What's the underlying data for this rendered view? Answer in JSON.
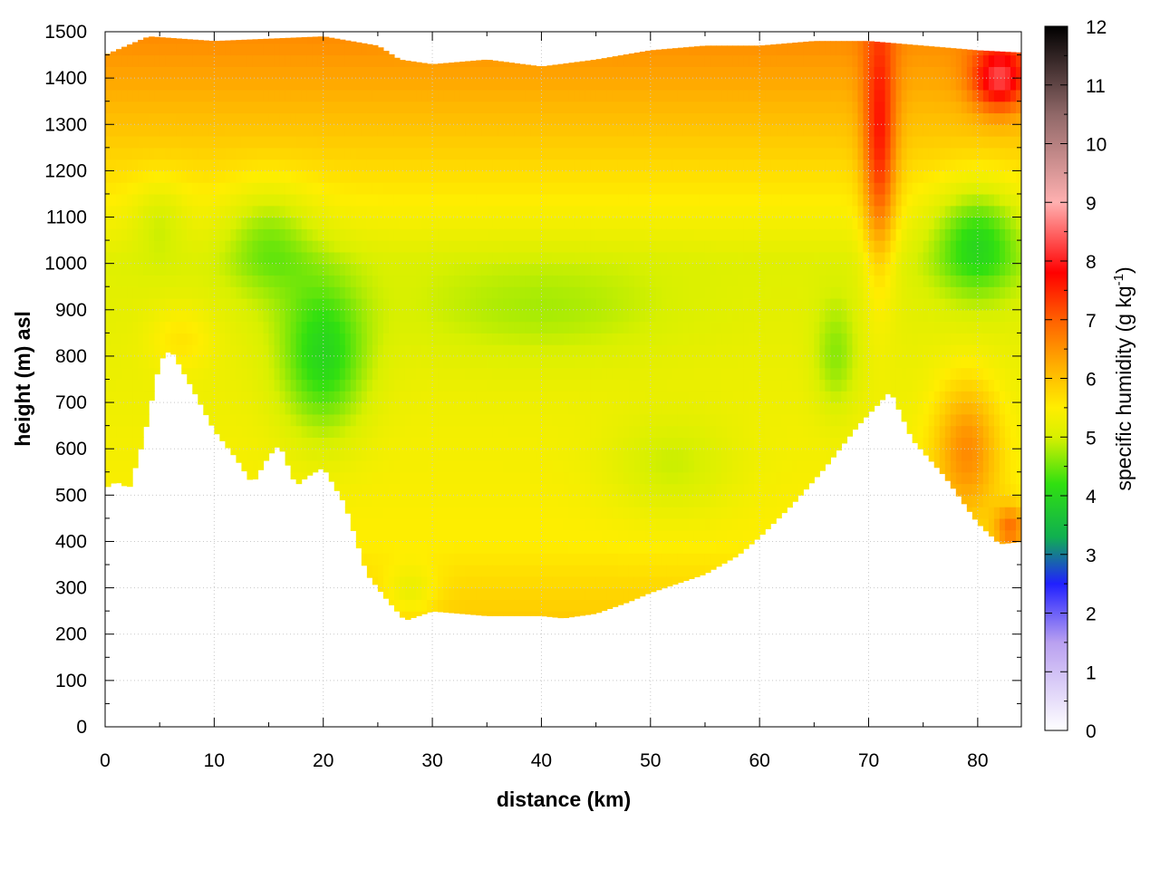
{
  "chart_data": {
    "type": "heatmap",
    "title": "",
    "xlabel": "distance (km)",
    "ylabel": "height (m) asl",
    "xlim": [
      0,
      84
    ],
    "ylim": [
      0,
      1500
    ],
    "x_ticks": [
      "0",
      "10",
      "20",
      "30",
      "40",
      "50",
      "60",
      "70",
      "80"
    ],
    "y_ticks": [
      "0",
      "100",
      "200",
      "300",
      "400",
      "500",
      "600",
      "700",
      "800",
      "900",
      "1000",
      "1100",
      "1200",
      "1300",
      "1400",
      "1500"
    ],
    "grid": true,
    "colorbar": {
      "label_main": "specific humidity (g kg",
      "label_sup": "-1",
      "label_end": ")",
      "range": [
        0,
        12
      ],
      "ticks": [
        "0",
        "1",
        "2",
        "3",
        "4",
        "5",
        "6",
        "7",
        "8",
        "9",
        "10",
        "11",
        "12"
      ],
      "stops": [
        {
          "value": 0,
          "color": "#ffffff"
        },
        {
          "value": 1.5,
          "color": "#b9a0f0"
        },
        {
          "value": 2.5,
          "color": "#2020ff"
        },
        {
          "value": 3.3,
          "color": "#10b050"
        },
        {
          "value": 4.2,
          "color": "#30e010"
        },
        {
          "value": 5.0,
          "color": "#d8f000"
        },
        {
          "value": 5.5,
          "color": "#ffee00"
        },
        {
          "value": 6.2,
          "color": "#ffb000"
        },
        {
          "value": 7.0,
          "color": "#ff6000"
        },
        {
          "value": 7.8,
          "color": "#ff0000"
        },
        {
          "value": 9.0,
          "color": "#ffb0b0"
        },
        {
          "value": 10.5,
          "color": "#906868"
        },
        {
          "value": 12,
          "color": "#000000"
        }
      ]
    },
    "terrain_height": [
      {
        "x": 0,
        "y": 515
      },
      {
        "x": 1,
        "y": 530
      },
      {
        "x": 2.2,
        "y": 515
      },
      {
        "x": 3.5,
        "y": 620
      },
      {
        "x": 5,
        "y": 790
      },
      {
        "x": 6,
        "y": 815
      },
      {
        "x": 8,
        "y": 730
      },
      {
        "x": 10,
        "y": 640
      },
      {
        "x": 12,
        "y": 580
      },
      {
        "x": 13.5,
        "y": 525
      },
      {
        "x": 15,
        "y": 585
      },
      {
        "x": 16,
        "y": 610
      },
      {
        "x": 17.5,
        "y": 520
      },
      {
        "x": 18.5,
        "y": 540
      },
      {
        "x": 20,
        "y": 560
      },
      {
        "x": 22,
        "y": 480
      },
      {
        "x": 24,
        "y": 330
      },
      {
        "x": 26,
        "y": 270
      },
      {
        "x": 27.5,
        "y": 230
      },
      {
        "x": 30,
        "y": 250
      },
      {
        "x": 35,
        "y": 240
      },
      {
        "x": 40,
        "y": 240
      },
      {
        "x": 42,
        "y": 235
      },
      {
        "x": 45,
        "y": 245
      },
      {
        "x": 48,
        "y": 270
      },
      {
        "x": 50,
        "y": 290
      },
      {
        "x": 55,
        "y": 330
      },
      {
        "x": 58,
        "y": 370
      },
      {
        "x": 60,
        "y": 410
      },
      {
        "x": 63,
        "y": 480
      },
      {
        "x": 66,
        "y": 560
      },
      {
        "x": 69,
        "y": 650
      },
      {
        "x": 72,
        "y": 725
      },
      {
        "x": 74,
        "y": 620
      },
      {
        "x": 77,
        "y": 540
      },
      {
        "x": 80,
        "y": 440
      },
      {
        "x": 82,
        "y": 395
      },
      {
        "x": 84,
        "y": 400
      }
    ],
    "top_height": [
      {
        "x": 0,
        "y": 1450
      },
      {
        "x": 2,
        "y": 1470
      },
      {
        "x": 4,
        "y": 1490
      },
      {
        "x": 10,
        "y": 1480
      },
      {
        "x": 20,
        "y": 1490
      },
      {
        "x": 25,
        "y": 1470
      },
      {
        "x": 27,
        "y": 1440
      },
      {
        "x": 30,
        "y": 1430
      },
      {
        "x": 35,
        "y": 1440
      },
      {
        "x": 40,
        "y": 1425
      },
      {
        "x": 45,
        "y": 1440
      },
      {
        "x": 50,
        "y": 1460
      },
      {
        "x": 55,
        "y": 1470
      },
      {
        "x": 60,
        "y": 1470
      },
      {
        "x": 65,
        "y": 1480
      },
      {
        "x": 70,
        "y": 1480
      },
      {
        "x": 75,
        "y": 1470
      },
      {
        "x": 80,
        "y": 1460
      },
      {
        "x": 84,
        "y": 1455
      }
    ],
    "humidity_features": [
      {
        "x": 20,
        "y": 800,
        "sx": 4,
        "sy": 170,
        "amp": -1.2
      },
      {
        "x": 15,
        "y": 1050,
        "sx": 4,
        "sy": 120,
        "amp": -0.7
      },
      {
        "x": 5,
        "y": 1100,
        "sx": 2.5,
        "sy": 90,
        "amp": -0.4
      },
      {
        "x": 28,
        "y": 290,
        "sx": 2.5,
        "sy": 60,
        "amp": -0.5
      },
      {
        "x": 52,
        "y": 560,
        "sx": 6,
        "sy": 110,
        "amp": -0.45
      },
      {
        "x": 40,
        "y": 900,
        "sx": 12,
        "sy": 110,
        "amp": -0.4
      },
      {
        "x": 80,
        "y": 1050,
        "sx": 4,
        "sy": 120,
        "amp": -1.2
      },
      {
        "x": 67,
        "y": 800,
        "sx": 2,
        "sy": 120,
        "amp": -0.6
      },
      {
        "x": 71,
        "y": 1250,
        "sx": 1.5,
        "sy": 260,
        "amp": 1.7
      },
      {
        "x": 79,
        "y": 600,
        "sx": 3,
        "sy": 150,
        "amp": 1.2
      },
      {
        "x": 83,
        "y": 430,
        "sx": 1.5,
        "sy": 50,
        "amp": 1.3
      },
      {
        "x": 82,
        "y": 1400,
        "sx": 2.5,
        "sy": 70,
        "amp": 2.0
      },
      {
        "x": 7,
        "y": 840,
        "sx": 3,
        "sy": 70,
        "amp": 0.4
      }
    ]
  }
}
